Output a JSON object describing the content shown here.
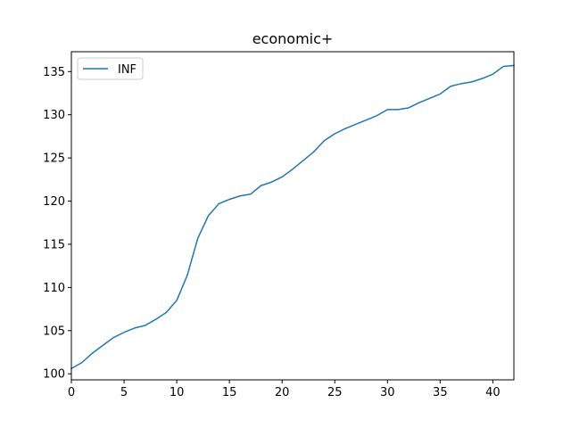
{
  "chart_data": {
    "type": "line",
    "title": "economic+",
    "xlabel": "",
    "ylabel": "",
    "xlim": [
      0,
      42
    ],
    "ylim": [
      99.3,
      137.3
    ],
    "xticks": [
      0,
      5,
      10,
      15,
      20,
      25,
      30,
      35,
      40
    ],
    "yticks": [
      100,
      105,
      110,
      115,
      120,
      125,
      130,
      135
    ],
    "grid": false,
    "legend": {
      "position": "upper-left"
    },
    "series": [
      {
        "name": "INF",
        "color": "#1f77b4",
        "x": [
          0,
          1,
          2,
          3,
          4,
          5,
          6,
          7,
          8,
          9,
          10,
          11,
          12,
          13,
          14,
          15,
          16,
          17,
          18,
          19,
          20,
          21,
          22,
          23,
          24,
          25,
          26,
          27,
          28,
          29,
          30,
          31,
          32,
          33,
          34,
          35,
          36,
          37,
          38,
          39,
          40,
          41,
          42
        ],
        "values": [
          100.6,
          101.3,
          102.4,
          103.3,
          104.2,
          104.8,
          105.3,
          105.6,
          106.3,
          107.1,
          108.5,
          111.4,
          115.7,
          118.3,
          119.7,
          120.2,
          120.6,
          120.8,
          121.8,
          122.2,
          122.8,
          123.7,
          124.7,
          125.7,
          127.0,
          127.8,
          128.4,
          128.9,
          129.4,
          129.9,
          130.6,
          130.6,
          130.8,
          131.4,
          131.9,
          132.4,
          133.3,
          133.6,
          133.8,
          134.2,
          134.7,
          135.6,
          135.7
        ]
      }
    ]
  }
}
